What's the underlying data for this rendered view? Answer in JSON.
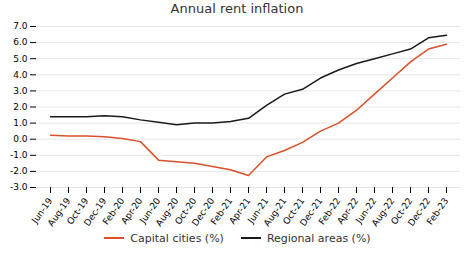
{
  "chart_data": {
    "type": "line",
    "title": "Annual rent inflation",
    "categories": [
      "Jun-19",
      "Aug-19",
      "Oct-19",
      "Dec-19",
      "Feb-20",
      "Apr-20",
      "Jun-20",
      "Aug-20",
      "Oct-20",
      "Dec-20",
      "Feb-21",
      "Apr-21",
      "Jun-21",
      "Aug-21",
      "Oct-21",
      "Dec-21",
      "Feb-22",
      "Apr-22",
      "Jun-22",
      "Aug-22",
      "Oct-22",
      "Dec-22",
      "Feb-23"
    ],
    "series": [
      {
        "name": "Capital cities (%)",
        "color": "#d9502a",
        "values": [
          0.25,
          0.2,
          0.2,
          0.15,
          0.05,
          -0.15,
          -1.3,
          -1.4,
          -1.5,
          -1.7,
          -1.9,
          -2.25,
          -1.1,
          -0.7,
          -0.2,
          0.5,
          1.0,
          1.8,
          2.8,
          3.8,
          4.8,
          5.6,
          5.9
        ]
      },
      {
        "name": "Regional areas (%)",
        "color": "#1a1a1a",
        "values": [
          1.4,
          1.4,
          1.4,
          1.45,
          1.4,
          1.2,
          1.05,
          0.9,
          1.0,
          1.0,
          1.1,
          1.3,
          2.1,
          2.8,
          3.1,
          3.8,
          4.3,
          4.7,
          5.0,
          5.3,
          5.6,
          6.3,
          6.45
        ]
      }
    ],
    "ylim": [
      -3.0,
      7.0
    ],
    "yticks": [
      {
        "value": -3.0,
        "label": "-3.0"
      },
      {
        "value": -2.0,
        "label": "-2.0"
      },
      {
        "value": -1.0,
        "label": "-1.0"
      },
      {
        "value": 0.0,
        "label": "0.0"
      },
      {
        "value": 1.0,
        "label": "1.0"
      },
      {
        "value": 2.0,
        "label": "2.0"
      },
      {
        "value": 3.0,
        "label": "3.0"
      },
      {
        "value": 4.0,
        "label": "4.0"
      },
      {
        "value": 5.0,
        "label": "5.0"
      },
      {
        "value": 6.0,
        "label": "6.0"
      },
      {
        "value": 7.0,
        "label": "7.0"
      }
    ],
    "grid": true,
    "legend": "bottom"
  }
}
